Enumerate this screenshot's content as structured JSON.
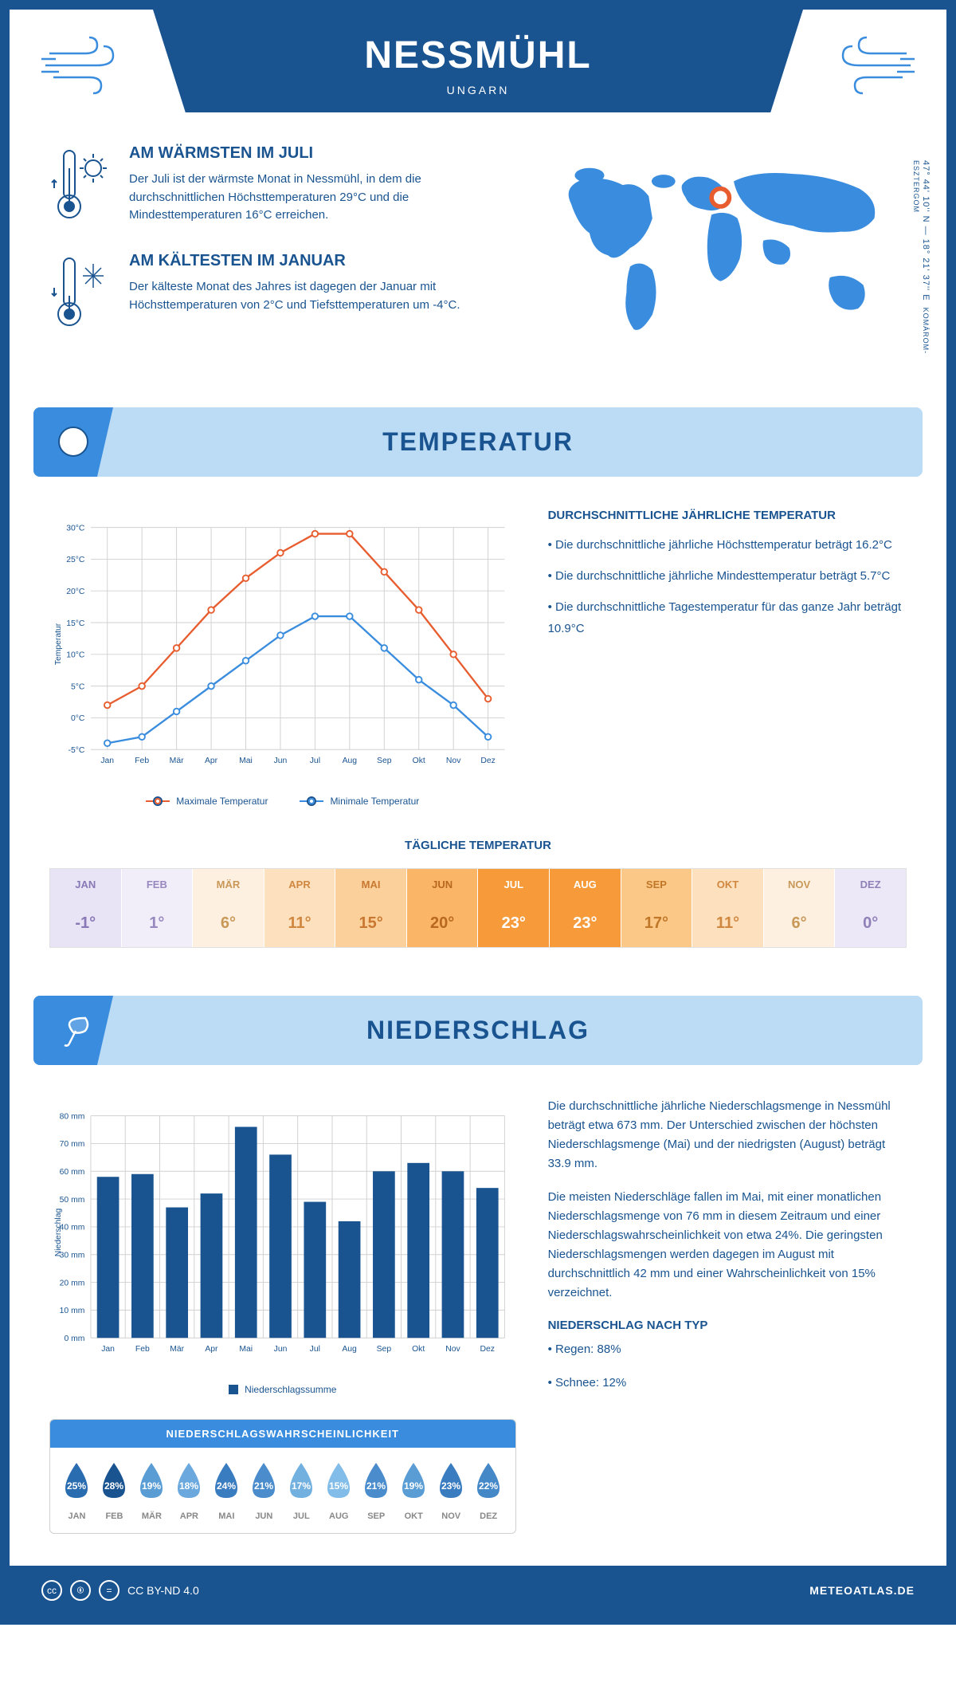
{
  "header": {
    "title": "NESSMÜHL",
    "subtitle": "UNGARN"
  },
  "coords": "47° 44' 10'' N — 18° 21' 37'' E",
  "region": "KOMÁROM-ESZTERGOM",
  "warmest": {
    "title": "AM WÄRMSTEN IM JULI",
    "text": "Der Juli ist der wärmste Monat in Nessmühl, in dem die durchschnittlichen Höchsttemperaturen 29°C und die Mindesttemperaturen 16°C erreichen."
  },
  "coldest": {
    "title": "AM KÄLTESTEN IM JANUAR",
    "text": "Der kälteste Monat des Jahres ist dagegen der Januar mit Höchsttemperaturen von 2°C und Tiefsttemperaturen um -4°C."
  },
  "temperature": {
    "section_title": "TEMPERATUR",
    "info_title": "DURCHSCHNITTLICHE JÄHRLICHE TEMPERATUR",
    "points": [
      "• Die durchschnittliche jährliche Höchsttemperatur beträgt 16.2°C",
      "• Die durchschnittliche jährliche Mindesttemperatur beträgt 5.7°C",
      "• Die durchschnittliche Tagestemperatur für das ganze Jahr beträgt 10.9°C"
    ],
    "months": [
      "Jan",
      "Feb",
      "Mär",
      "Apr",
      "Mai",
      "Jun",
      "Jul",
      "Aug",
      "Sep",
      "Okt",
      "Nov",
      "Dez"
    ],
    "max": [
      2,
      5,
      11,
      17,
      22,
      26,
      29,
      29,
      23,
      17,
      10,
      3
    ],
    "min": [
      -4,
      -3,
      1,
      5,
      9,
      13,
      16,
      16,
      11,
      6,
      2,
      -3
    ],
    "max_color": "#e85d2f",
    "min_color": "#3a8dde",
    "ylim": [
      -5,
      30
    ],
    "ytick_step": 5,
    "ylabel": "Temperatur",
    "legend_max": "Maximale Temperatur",
    "legend_min": "Minimale Temperatur",
    "daily_title": "TÄGLICHE TEMPERATUR",
    "daily": [
      {
        "m": "JAN",
        "v": "-1°",
        "bg": "#e8e3f5",
        "fg": "#8878b5"
      },
      {
        "m": "FEB",
        "v": "1°",
        "bg": "#f2eef9",
        "fg": "#9888c0"
      },
      {
        "m": "MÄR",
        "v": "6°",
        "bg": "#fdf0e0",
        "fg": "#c89858"
      },
      {
        "m": "APR",
        "v": "11°",
        "bg": "#fde0bd",
        "fg": "#d08840"
      },
      {
        "m": "MAI",
        "v": "15°",
        "bg": "#fcd09a",
        "fg": "#c87830"
      },
      {
        "m": "JUN",
        "v": "20°",
        "bg": "#fab567",
        "fg": "#b86820"
      },
      {
        "m": "JUL",
        "v": "23°",
        "bg": "#f79a3a",
        "fg": "#fff"
      },
      {
        "m": "AUG",
        "v": "23°",
        "bg": "#f79a3a",
        "fg": "#fff"
      },
      {
        "m": "SEP",
        "v": "17°",
        "bg": "#fcc888",
        "fg": "#c07828"
      },
      {
        "m": "OKT",
        "v": "11°",
        "bg": "#fde0bd",
        "fg": "#d08840"
      },
      {
        "m": "NOV",
        "v": "6°",
        "bg": "#fdf0e0",
        "fg": "#c89858"
      },
      {
        "m": "DEZ",
        "v": "0°",
        "bg": "#ede8f7",
        "fg": "#9080b8"
      }
    ]
  },
  "precipitation": {
    "section_title": "NIEDERSCHLAG",
    "months": [
      "Jan",
      "Feb",
      "Mär",
      "Apr",
      "Mai",
      "Jun",
      "Jul",
      "Aug",
      "Sep",
      "Okt",
      "Nov",
      "Dez"
    ],
    "values": [
      58,
      59,
      47,
      52,
      76,
      66,
      49,
      42,
      60,
      63,
      60,
      54
    ],
    "bar_color": "#1a5490",
    "ylim": [
      0,
      80
    ],
    "ytick_step": 10,
    "ylabel": "Niederschlag",
    "legend": "Niederschlagssumme",
    "text1": "Die durchschnittliche jährliche Niederschlagsmenge in Nessmühl beträgt etwa 673 mm. Der Unterschied zwischen der höchsten Niederschlagsmenge (Mai) und der niedrigsten (August) beträgt 33.9 mm.",
    "text2": "Die meisten Niederschläge fallen im Mai, mit einer monatlichen Niederschlagsmenge von 76 mm in diesem Zeitraum und einer Niederschlagswahrscheinlichkeit von etwa 24%. Die geringsten Niederschlagsmengen werden dagegen im August mit durchschnittlich 42 mm und einer Wahrscheinlichkeit von 15% verzeichnet.",
    "type_title": "NIEDERSCHLAG NACH TYP",
    "type_rain": "• Regen: 88%",
    "type_snow": "• Schnee: 12%",
    "prob_title": "NIEDERSCHLAGSWAHRSCHEINLICHKEIT",
    "prob": [
      {
        "m": "JAN",
        "v": "25%",
        "c": "#2a6cb0"
      },
      {
        "m": "FEB",
        "v": "28%",
        "c": "#1a5490"
      },
      {
        "m": "MÄR",
        "v": "19%",
        "c": "#5a9dd5"
      },
      {
        "m": "APR",
        "v": "18%",
        "c": "#6aa8dd"
      },
      {
        "m": "MAI",
        "v": "24%",
        "c": "#3a7cc0"
      },
      {
        "m": "JUN",
        "v": "21%",
        "c": "#4a8ccc"
      },
      {
        "m": "JUL",
        "v": "17%",
        "c": "#72b0e0"
      },
      {
        "m": "AUG",
        "v": "15%",
        "c": "#82bce8"
      },
      {
        "m": "SEP",
        "v": "21%",
        "c": "#4a8ccc"
      },
      {
        "m": "OKT",
        "v": "19%",
        "c": "#5a9dd5"
      },
      {
        "m": "NOV",
        "v": "23%",
        "c": "#3a7cc0"
      },
      {
        "m": "DEZ",
        "v": "22%",
        "c": "#4588c8"
      }
    ]
  },
  "footer": {
    "license": "CC BY-ND 4.0",
    "brand": "METEOATLAS.DE"
  }
}
